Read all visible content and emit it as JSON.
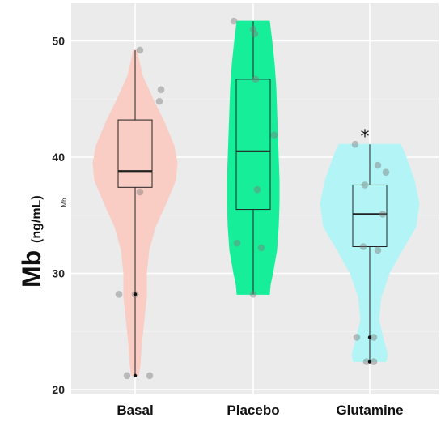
{
  "chart_data": {
    "type": "violin",
    "ylabel_main": "Mb",
    "ylabel_unit": "(ng/mL)",
    "ylabel_inner": "Mb",
    "ylim": [
      20,
      53
    ],
    "yticks": [
      20,
      30,
      40,
      50
    ],
    "grid": true,
    "categories": [
      "Basal",
      "Placebo",
      "Glutamine"
    ],
    "groups": [
      {
        "name": "Basal",
        "color": "#f9cdc4",
        "box": {
          "min": 21.2,
          "q1": 37.4,
          "median": 38.8,
          "q3": 43.2,
          "max": 49.2
        },
        "points": [
          49.2,
          45.8,
          44.8,
          37.0,
          28.2,
          28.2,
          21.2,
          21.2
        ],
        "outliers": [
          28.2,
          21.2
        ]
      },
      {
        "name": "Placebo",
        "color": "#17ee9a",
        "box": {
          "min": 28.2,
          "q1": 35.5,
          "median": 40.5,
          "q3": 46.7,
          "max": 51.7
        },
        "points": [
          51.7,
          51.0,
          50.6,
          46.7,
          41.9,
          37.2,
          32.6,
          32.2,
          28.2
        ],
        "outliers": []
      },
      {
        "name": "Glutamine",
        "color": "#b3f5f6",
        "box": {
          "min": 22.4,
          "q1": 32.3,
          "median": 35.1,
          "q3": 37.6,
          "max": 41.1
        },
        "points": [
          41.1,
          39.3,
          38.7,
          37.6,
          35.1,
          32.3,
          32.0,
          24.5,
          24.5,
          22.4,
          22.4
        ],
        "outliers": [
          24.5,
          22.4
        ],
        "annotation": "*"
      }
    ]
  }
}
